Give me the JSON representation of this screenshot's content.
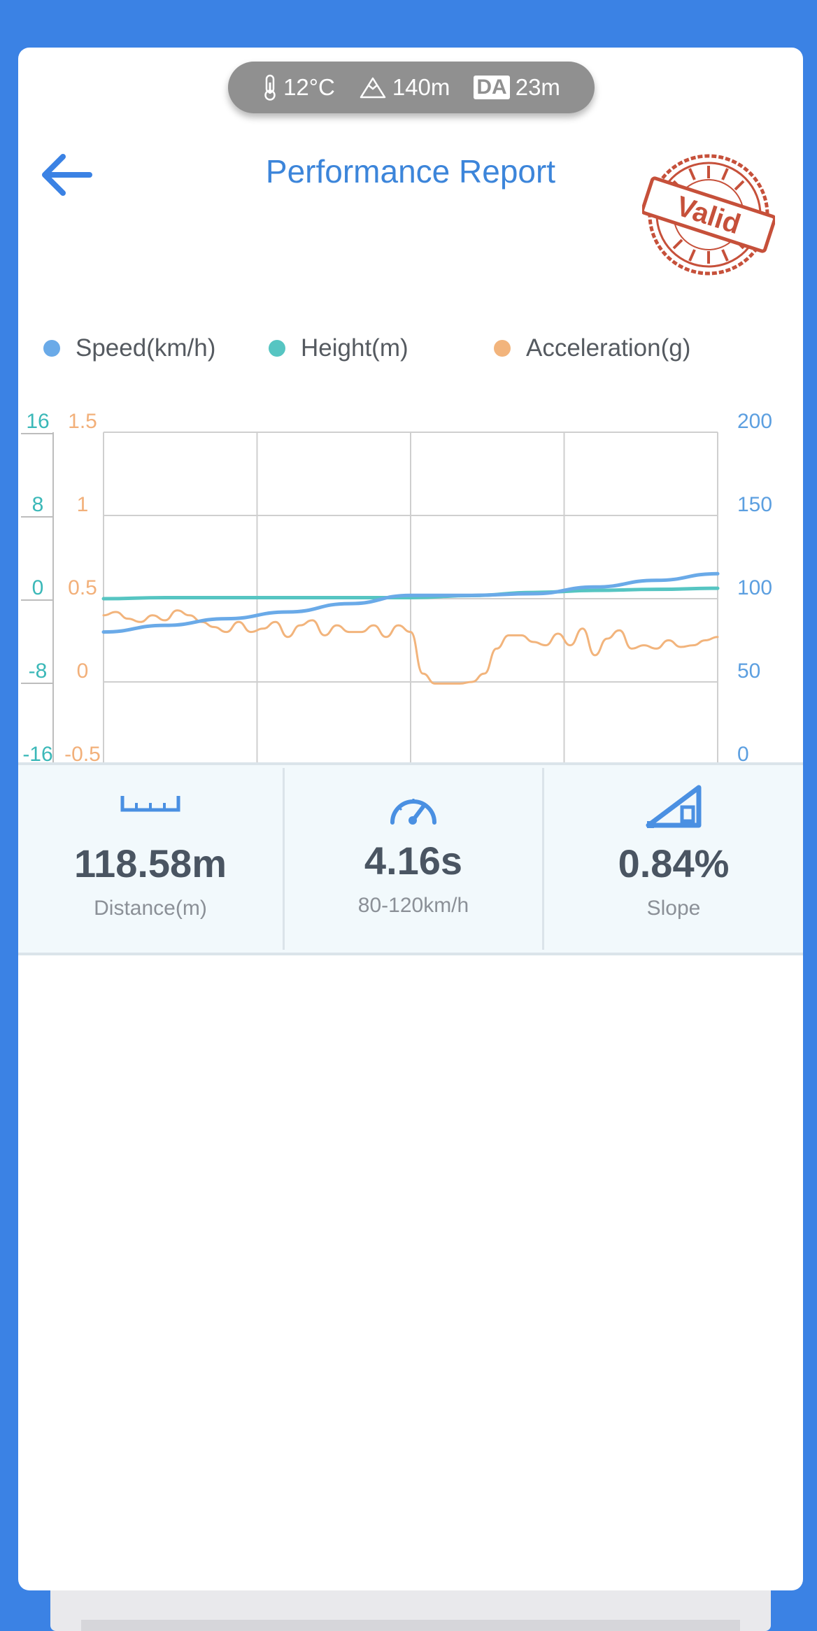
{
  "conditions": {
    "temperature": "12°C",
    "altitude": "140m",
    "da_badge": "DA",
    "density_altitude": "23m"
  },
  "header": {
    "title": "Performance Report",
    "stamp_text": "Valid"
  },
  "legend": [
    {
      "label": "Speed(km/h)",
      "color": "#6aaae8"
    },
    {
      "label": "Height(m)",
      "color": "#56c5c2"
    },
    {
      "label": "Acceleration(g)",
      "color": "#f2b47c"
    }
  ],
  "chart_data": {
    "type": "line",
    "xlim": [
      0,
      100
    ],
    "grid": true,
    "axes": {
      "height_left": {
        "ticks": [
          "16",
          "8",
          "0",
          "-8",
          "-16"
        ],
        "ylim": [
          -16,
          16
        ],
        "color": "#3bb8b8"
      },
      "acceleration_left": {
        "ticks": [
          "1.5",
          "1",
          "0.5",
          "0",
          "-0.5"
        ],
        "ylim": [
          -0.5,
          1.5
        ],
        "color": "#f2b07a"
      },
      "speed_right": {
        "ticks": [
          "200",
          "150",
          "100",
          "50",
          "0"
        ],
        "ylim": [
          0,
          200
        ],
        "color": "#5c9fe0"
      }
    },
    "series": [
      {
        "name": "Speed(km/h)",
        "axis": "speed_right",
        "color": "#6aaae8",
        "x": [
          0,
          10,
          20,
          30,
          40,
          50,
          60,
          70,
          80,
          90,
          100
        ],
        "y": [
          80,
          84,
          88,
          92,
          97,
          102,
          102,
          103,
          107,
          111,
          115
        ]
      },
      {
        "name": "Height(m)",
        "axis": "height_left",
        "color": "#56c5c2",
        "x": [
          0,
          10,
          20,
          30,
          40,
          50,
          60,
          70,
          80,
          90,
          100
        ],
        "y": [
          0,
          0.1,
          0.1,
          0.1,
          0.1,
          0.1,
          0.3,
          0.6,
          0.8,
          0.9,
          1.0
        ]
      },
      {
        "name": "Acceleration(g)",
        "axis": "acceleration_left",
        "color": "#f2b47c",
        "x": [
          0,
          2,
          4,
          6,
          8,
          10,
          12,
          14,
          16,
          18,
          20,
          22,
          24,
          26,
          28,
          30,
          32,
          34,
          36,
          38,
          40,
          42,
          44,
          46,
          48,
          50,
          52,
          54,
          56,
          58,
          60,
          62,
          64,
          66,
          68,
          70,
          72,
          74,
          76,
          78,
          80,
          82,
          84,
          86,
          88,
          90,
          92,
          94,
          96,
          98,
          100
        ],
        "y": [
          0.4,
          0.42,
          0.38,
          0.36,
          0.4,
          0.37,
          0.43,
          0.4,
          0.36,
          0.33,
          0.3,
          0.36,
          0.3,
          0.32,
          0.36,
          0.27,
          0.34,
          0.37,
          0.28,
          0.34,
          0.3,
          0.3,
          0.34,
          0.27,
          0.34,
          0.3,
          0.05,
          -0.01,
          -0.01,
          -0.01,
          0.0,
          0.05,
          0.2,
          0.28,
          0.28,
          0.24,
          0.22,
          0.29,
          0.22,
          0.32,
          0.16,
          0.26,
          0.31,
          0.2,
          0.22,
          0.2,
          0.25,
          0.21,
          0.22,
          0.25,
          0.27
        ]
      }
    ]
  },
  "stats": [
    {
      "icon": "ruler-icon",
      "value": "118.58m",
      "label": "Distance(m)"
    },
    {
      "icon": "speedometer-icon",
      "value": "4.16s",
      "label": "80-120km/h"
    },
    {
      "icon": "slope-icon",
      "value": "0.84%",
      "label": "Slope"
    }
  ]
}
